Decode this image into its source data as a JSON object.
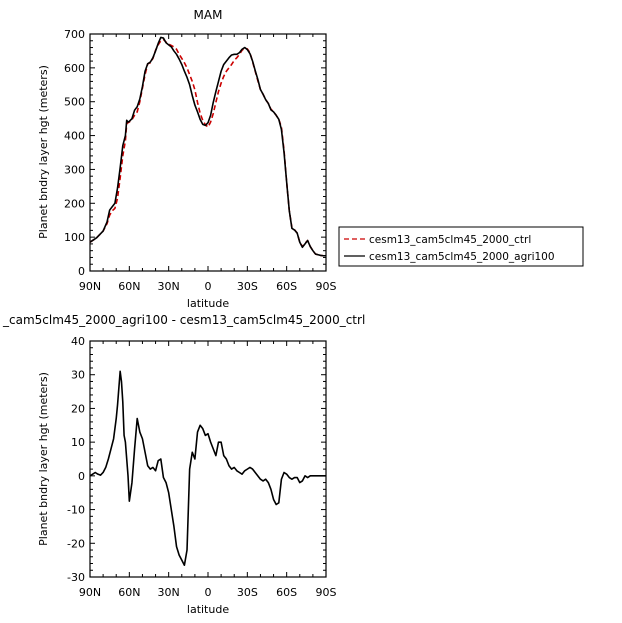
{
  "chart_data": [
    {
      "type": "line",
      "title": "MAM",
      "xlabel": "latitude",
      "ylabel": "Planet bndry layer hgt (meters)",
      "x_tick_labels": [
        "90N",
        "60N",
        "30N",
        "0",
        "30S",
        "60S",
        "90S"
      ],
      "x_ticks": [
        90,
        60,
        30,
        0,
        -30,
        -60,
        -90
      ],
      "x_range": [
        90,
        -90
      ],
      "ylim": [
        0,
        700
      ],
      "y_ticks": [
        0,
        100,
        200,
        300,
        400,
        500,
        600,
        700
      ],
      "grid": false,
      "legend_placement": "right",
      "series": [
        {
          "name": "cesm13_cam5clm45_2000_ctrl",
          "color": "#cc0000",
          "style": "dashed",
          "x": [
            90,
            85,
            80,
            77,
            75,
            73,
            71,
            69,
            67,
            65,
            63,
            62,
            61,
            60,
            58,
            56,
            54,
            52,
            50,
            48,
            46,
            44,
            42,
            40,
            38,
            36,
            34,
            32,
            30,
            28,
            26,
            24,
            22,
            20,
            18,
            16,
            14,
            12,
            10,
            8,
            6,
            4,
            2,
            0,
            -2,
            -4,
            -6,
            -8,
            -10,
            -12,
            -14,
            -16,
            -18,
            -20,
            -22,
            -24,
            -26,
            -28,
            -30,
            -32,
            -34,
            -36,
            -38,
            -40,
            -42,
            -44,
            -46,
            -48,
            -50,
            -52,
            -54,
            -56,
            -58,
            -60,
            -62,
            -64,
            -66,
            -68,
            -70,
            -72,
            -74,
            -76,
            -78,
            -80,
            -82,
            -84,
            -86,
            -88,
            -90
          ],
          "y": [
            85,
            98,
            118,
            140,
            165,
            178,
            185,
            215,
            275,
            340,
            385,
            435,
            438,
            440,
            447,
            460,
            470,
            500,
            540,
            580,
            612,
            615,
            628,
            652,
            668,
            680,
            684,
            676,
            670,
            666,
            662,
            655,
            640,
            628,
            615,
            600,
            580,
            560,
            535,
            498,
            466,
            445,
            432,
            425,
            440,
            465,
            498,
            530,
            555,
            575,
            590,
            600,
            610,
            622,
            630,
            640,
            652,
            658,
            656,
            645,
            618,
            590,
            562,
            536,
            522,
            506,
            495,
            478,
            470,
            460,
            448,
            425,
            356,
            262,
            178,
            128,
            122,
            112,
            85,
            72,
            82,
            90,
            72,
            60,
            50,
            48,
            46,
            45,
            45
          ]
        },
        {
          "name": "cesm13_cam5clm45_2000_agri100",
          "color": "#000000",
          "style": "solid",
          "x": [
            90,
            85,
            80,
            77,
            75,
            73,
            71,
            69,
            67,
            65,
            63,
            62,
            61,
            60,
            58,
            56,
            54,
            52,
            50,
            48,
            46,
            44,
            42,
            40,
            38,
            36,
            34,
            32,
            30,
            28,
            26,
            24,
            22,
            20,
            18,
            16,
            14,
            12,
            10,
            8,
            6,
            4,
            2,
            0,
            -2,
            -4,
            -6,
            -8,
            -10,
            -12,
            -14,
            -16,
            -18,
            -20,
            -22,
            -24,
            -26,
            -28,
            -30,
            -32,
            -34,
            -36,
            -38,
            -40,
            -42,
            -44,
            -46,
            -48,
            -50,
            -52,
            -54,
            -56,
            -58,
            -60,
            -62,
            -64,
            -66,
            -68,
            -70,
            -72,
            -74,
            -76,
            -78,
            -80,
            -82,
            -84,
            -86,
            -88,
            -90
          ],
          "y": [
            85,
            98,
            118,
            145,
            180,
            190,
            200,
            245,
            305,
            370,
            400,
            445,
            440,
            442,
            450,
            475,
            485,
            508,
            545,
            590,
            612,
            617,
            630,
            650,
            672,
            690,
            688,
            674,
            668,
            662,
            650,
            640,
            626,
            610,
            590,
            572,
            550,
            518,
            490,
            470,
            448,
            433,
            430,
            438,
            460,
            498,
            530,
            560,
            590,
            610,
            620,
            630,
            638,
            640,
            640,
            645,
            655,
            660,
            654,
            642,
            620,
            592,
            566,
            536,
            522,
            506,
            495,
            476,
            470,
            460,
            448,
            418,
            350,
            262,
            178,
            126,
            121,
            112,
            85,
            70,
            80,
            90,
            72,
            60,
            50,
            48,
            46,
            45,
            45
          ]
        }
      ]
    },
    {
      "type": "line",
      "title": "_cam5clm45_2000_agri100 - cesm13_cam5clm45_2000_ctrl",
      "xlabel": "latitude",
      "ylabel": "Planet bndry layer hgt (meters)",
      "x_tick_labels": [
        "90N",
        "60N",
        "30N",
        "0",
        "30S",
        "60S",
        "90S"
      ],
      "x_ticks": [
        90,
        60,
        30,
        0,
        -30,
        -60,
        -90
      ],
      "x_range": [
        90,
        -90
      ],
      "ylim": [
        -30,
        40
      ],
      "y_ticks": [
        -30,
        -20,
        -10,
        0,
        10,
        20,
        30,
        40
      ],
      "grid": false,
      "series": [
        {
          "color": "#000000",
          "style": "solid",
          "x": [
            90,
            88,
            86,
            84,
            82,
            80,
            78,
            76,
            74,
            72,
            70,
            69,
            68,
            67,
            66,
            65,
            64,
            63,
            62,
            61,
            60,
            58,
            56,
            54,
            52,
            50,
            48,
            46,
            44,
            42,
            40,
            38,
            36,
            34,
            32,
            30,
            28,
            26,
            24,
            22,
            20,
            18,
            16,
            14,
            12,
            10,
            8,
            6,
            4,
            2,
            0,
            -2,
            -4,
            -6,
            -8,
            -10,
            -12,
            -14,
            -16,
            -18,
            -20,
            -22,
            -24,
            -26,
            -28,
            -30,
            -32,
            -34,
            -36,
            -38,
            -40,
            -42,
            -44,
            -46,
            -48,
            -50,
            -52,
            -54,
            -56,
            -58,
            -60,
            -62,
            -64,
            -66,
            -68,
            -70,
            -72,
            -74,
            -76,
            -78,
            -80,
            -82,
            -84,
            -86,
            -88,
            -90
          ],
          "y": [
            0,
            0.5,
            1,
            0.5,
            0.2,
            1,
            2.5,
            5,
            8,
            11,
            17,
            21,
            26,
            31,
            28,
            22,
            12,
            10,
            5,
            0,
            -7.5,
            -2,
            8,
            17,
            13,
            11,
            7,
            3,
            2,
            2.5,
            1.5,
            4.5,
            5,
            -0.5,
            -2,
            -5,
            -10,
            -15,
            -21,
            -23.5,
            -25,
            -26.5,
            -22,
            2,
            7,
            5,
            13,
            15,
            14,
            12,
            12.5,
            10,
            8,
            6,
            10,
            10,
            6,
            5,
            3,
            2,
            2.5,
            1.5,
            1,
            0.5,
            1.5,
            2,
            2.5,
            2,
            1,
            0,
            -1,
            -1.5,
            -1,
            -2,
            -4,
            -7,
            -8.5,
            -8,
            -1,
            1,
            0.5,
            -0.5,
            -1,
            -0.5,
            -0.5,
            -2,
            -1.5,
            0,
            -0.5,
            0,
            0,
            0,
            0,
            0,
            0,
            0
          ]
        }
      ]
    }
  ]
}
